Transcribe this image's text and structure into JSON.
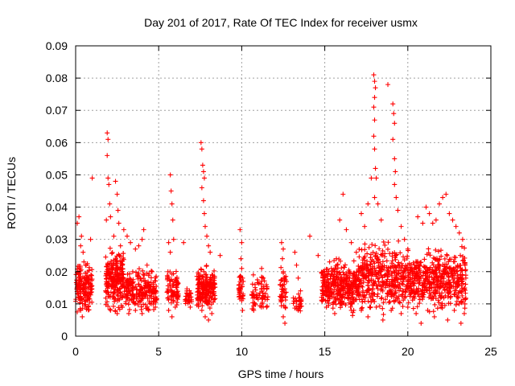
{
  "chart_data": {
    "type": "scatter",
    "title": "Day 201 of 2017, Rate Of TEC Index for receiver usmx",
    "xlabel": "GPS time / hours",
    "ylabel": "ROTI / TECUs",
    "xlim": [
      0,
      25
    ],
    "ylim": [
      0,
      0.09
    ],
    "x_ticks": [
      "0",
      "5",
      "10",
      "15",
      "20",
      "25"
    ],
    "y_ticks": [
      "0",
      "0.01",
      "0.02",
      "0.03",
      "0.04",
      "0.05",
      "0.06",
      "0.07",
      "0.08",
      "0.09"
    ],
    "grid": true,
    "marker": "plus",
    "color": "#ff0000",
    "series": [
      {
        "points": [
          [
            0.1,
            0.035
          ],
          [
            0.2,
            0.037
          ],
          [
            0.3,
            0.028
          ],
          [
            0.35,
            0.031
          ],
          [
            0.45,
            0.026
          ],
          [
            0.6,
            0.022
          ],
          [
            0.8,
            0.018
          ],
          [
            0.9,
            0.03
          ],
          [
            1.0,
            0.049
          ],
          [
            0.2,
            0.015
          ],
          [
            0.3,
            0.008
          ],
          [
            0.4,
            0.006
          ],
          [
            0.6,
            0.011
          ],
          [
            0.8,
            0.013
          ],
          [
            0.9,
            0.016
          ],
          [
            1.9,
            0.063
          ],
          [
            1.95,
            0.061
          ],
          [
            1.9,
            0.056
          ],
          [
            1.95,
            0.049
          ],
          [
            2.0,
            0.047
          ],
          [
            2.05,
            0.041
          ],
          [
            2.1,
            0.037
          ],
          [
            1.85,
            0.036
          ],
          [
            2.4,
            0.048
          ],
          [
            2.5,
            0.044
          ],
          [
            2.55,
            0.039
          ],
          [
            2.6,
            0.035
          ],
          [
            2.3,
            0.031
          ],
          [
            2.7,
            0.028
          ],
          [
            2.9,
            0.033
          ],
          [
            3.1,
            0.031
          ],
          [
            3.3,
            0.029
          ],
          [
            3.6,
            0.027
          ],
          [
            3.8,
            0.028
          ],
          [
            4.0,
            0.03
          ],
          [
            4.1,
            0.033
          ],
          [
            4.3,
            0.022
          ],
          [
            4.6,
            0.02
          ],
          [
            2.1,
            0.008
          ],
          [
            2.5,
            0.007
          ],
          [
            2.8,
            0.009
          ],
          [
            3.2,
            0.007
          ],
          [
            3.6,
            0.008
          ],
          [
            4.0,
            0.007
          ],
          [
            4.4,
            0.008
          ],
          [
            4.8,
            0.009
          ],
          [
            5.6,
            0.029
          ],
          [
            5.7,
            0.05
          ],
          [
            5.75,
            0.045
          ],
          [
            5.8,
            0.041
          ],
          [
            5.85,
            0.036
          ],
          [
            5.9,
            0.03
          ],
          [
            5.7,
            0.026
          ],
          [
            6.5,
            0.029
          ],
          [
            5.6,
            0.008
          ],
          [
            5.8,
            0.006
          ],
          [
            6.0,
            0.009
          ],
          [
            6.7,
            0.014
          ],
          [
            6.8,
            0.011
          ],
          [
            6.9,
            0.009
          ],
          [
            7.55,
            0.06
          ],
          [
            7.6,
            0.058
          ],
          [
            7.65,
            0.053
          ],
          [
            7.7,
            0.051
          ],
          [
            7.75,
            0.049
          ],
          [
            7.6,
            0.046
          ],
          [
            7.7,
            0.042
          ],
          [
            7.75,
            0.038
          ],
          [
            7.8,
            0.034
          ],
          [
            7.9,
            0.031
          ],
          [
            8.0,
            0.028
          ],
          [
            8.1,
            0.026
          ],
          [
            8.7,
            0.025
          ],
          [
            7.4,
            0.01
          ],
          [
            7.6,
            0.008
          ],
          [
            7.8,
            0.006
          ],
          [
            8.0,
            0.005
          ],
          [
            8.2,
            0.007
          ],
          [
            9.9,
            0.033
          ],
          [
            10.0,
            0.029
          ],
          [
            9.95,
            0.024
          ],
          [
            10.0,
            0.021
          ],
          [
            10.05,
            0.018
          ],
          [
            9.9,
            0.014
          ],
          [
            10.0,
            0.011
          ],
          [
            10.05,
            0.008
          ],
          [
            10.7,
            0.019
          ],
          [
            10.8,
            0.016
          ],
          [
            10.9,
            0.013
          ],
          [
            11.2,
            0.021
          ],
          [
            11.3,
            0.018
          ],
          [
            11.4,
            0.012
          ],
          [
            11.5,
            0.009
          ],
          [
            12.4,
            0.029
          ],
          [
            12.5,
            0.027
          ],
          [
            12.45,
            0.024
          ],
          [
            12.5,
            0.02
          ],
          [
            12.55,
            0.016
          ],
          [
            12.4,
            0.011
          ],
          [
            12.5,
            0.006
          ],
          [
            12.6,
            0.004
          ],
          [
            13.2,
            0.026
          ],
          [
            13.3,
            0.022
          ],
          [
            13.4,
            0.018
          ],
          [
            13.5,
            0.012
          ],
          [
            13.4,
            0.008
          ],
          [
            14.1,
            0.031
          ],
          [
            14.6,
            0.025
          ],
          [
            15.1,
            0.009
          ],
          [
            15.3,
            0.012
          ],
          [
            15.6,
            0.007
          ],
          [
            15.8,
            0.014
          ],
          [
            16.0,
            0.01
          ],
          [
            16.3,
            0.017
          ],
          [
            16.6,
            0.008
          ],
          [
            15.4,
            0.021
          ],
          [
            15.7,
            0.024
          ],
          [
            15.9,
            0.036
          ],
          [
            16.1,
            0.044
          ],
          [
            16.3,
            0.033
          ],
          [
            16.6,
            0.029
          ],
          [
            16.9,
            0.026
          ],
          [
            17.2,
            0.038
          ],
          [
            17.4,
            0.034
          ],
          [
            17.6,
            0.041
          ],
          [
            17.8,
            0.049
          ],
          [
            17.95,
            0.081
          ],
          [
            18.0,
            0.079
          ],
          [
            18.05,
            0.077
          ],
          [
            18.0,
            0.074
          ],
          [
            17.95,
            0.071
          ],
          [
            18.0,
            0.067
          ],
          [
            17.95,
            0.062
          ],
          [
            18.0,
            0.058
          ],
          [
            18.05,
            0.052
          ],
          [
            18.1,
            0.049
          ],
          [
            18.0,
            0.043
          ],
          [
            18.2,
            0.041
          ],
          [
            18.4,
            0.036
          ],
          [
            18.8,
            0.078
          ],
          [
            19.1,
            0.072
          ],
          [
            19.15,
            0.069
          ],
          [
            19.2,
            0.066
          ],
          [
            19.1,
            0.061
          ],
          [
            19.2,
            0.055
          ],
          [
            19.25,
            0.051
          ],
          [
            19.2,
            0.047
          ],
          [
            19.3,
            0.043
          ],
          [
            19.4,
            0.039
          ],
          [
            19.6,
            0.034
          ],
          [
            19.8,
            0.03
          ],
          [
            20.0,
            0.027
          ],
          [
            17.2,
            0.008
          ],
          [
            17.6,
            0.006
          ],
          [
            18.1,
            0.009
          ],
          [
            18.5,
            0.005
          ],
          [
            19.0,
            0.008
          ],
          [
            19.6,
            0.007
          ],
          [
            20.0,
            0.009
          ],
          [
            20.6,
            0.037
          ],
          [
            20.9,
            0.035
          ],
          [
            21.1,
            0.04
          ],
          [
            21.3,
            0.038
          ],
          [
            21.5,
            0.035
          ],
          [
            21.7,
            0.036
          ],
          [
            21.9,
            0.041
          ],
          [
            22.1,
            0.043
          ],
          [
            22.3,
            0.044
          ],
          [
            22.5,
            0.038
          ],
          [
            22.7,
            0.036
          ],
          [
            22.9,
            0.034
          ],
          [
            23.1,
            0.032
          ],
          [
            23.3,
            0.03
          ],
          [
            20.5,
            0.007
          ],
          [
            20.8,
            0.004
          ],
          [
            21.2,
            0.008
          ],
          [
            21.6,
            0.006
          ],
          [
            22.0,
            0.009
          ],
          [
            22.4,
            0.005
          ],
          [
            22.8,
            0.008
          ],
          [
            23.2,
            0.004
          ],
          [
            23.4,
            0.007
          ]
        ],
        "dense_clusters": [
          {
            "x": [
              0.0,
              1.0
            ],
            "y": [
              0.005,
              0.025
            ],
            "count": 160
          },
          {
            "x": [
              1.8,
              2.9
            ],
            "y": [
              0.006,
              0.03
            ],
            "count": 230
          },
          {
            "x": [
              2.9,
              4.9
            ],
            "y": [
              0.006,
              0.022
            ],
            "count": 220
          },
          {
            "x": [
              5.5,
              6.2
            ],
            "y": [
              0.006,
              0.022
            ],
            "count": 80
          },
          {
            "x": [
              6.6,
              7.0
            ],
            "y": [
              0.008,
              0.016
            ],
            "count": 25
          },
          {
            "x": [
              7.3,
              8.4
            ],
            "y": [
              0.006,
              0.023
            ],
            "count": 200
          },
          {
            "x": [
              9.8,
              10.1
            ],
            "y": [
              0.008,
              0.022
            ],
            "count": 30
          },
          {
            "x": [
              10.6,
              11.6
            ],
            "y": [
              0.006,
              0.02
            ],
            "count": 60
          },
          {
            "x": [
              12.3,
              12.7
            ],
            "y": [
              0.005,
              0.024
            ],
            "count": 40
          },
          {
            "x": [
              13.1,
              13.6
            ],
            "y": [
              0.006,
              0.016
            ],
            "count": 25
          },
          {
            "x": [
              14.8,
              17.0
            ],
            "y": [
              0.005,
              0.026
            ],
            "count": 330
          },
          {
            "x": [
              17.0,
              19.5
            ],
            "y": [
              0.005,
              0.032
            ],
            "count": 340
          },
          {
            "x": [
              19.5,
              21.0
            ],
            "y": [
              0.006,
              0.028
            ],
            "count": 180
          },
          {
            "x": [
              21.0,
              23.5
            ],
            "y": [
              0.005,
              0.03
            ],
            "count": 330
          }
        ]
      }
    ]
  }
}
